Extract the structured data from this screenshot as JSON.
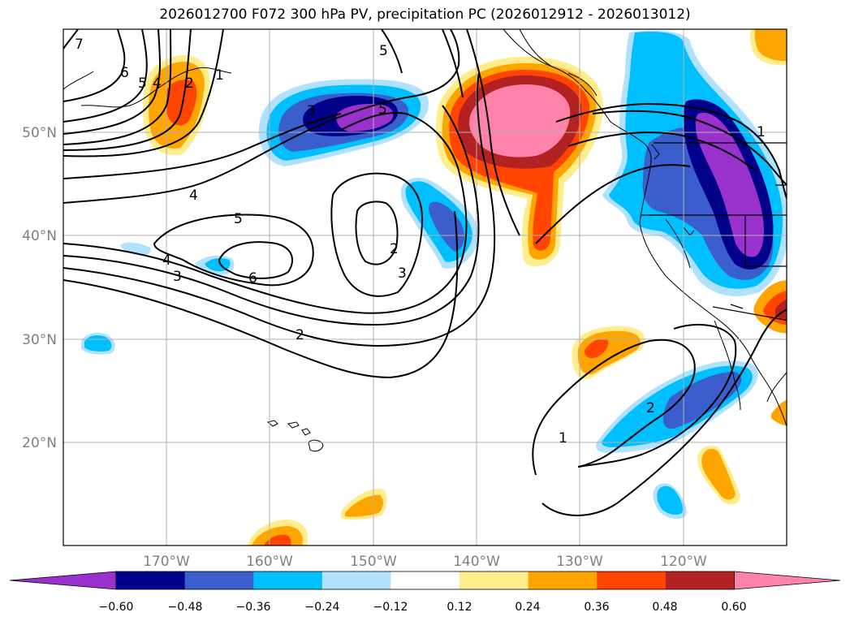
{
  "title": "2026012700 F072 300 hPa PV, precipitation PC (2026012912 - 2026013012)",
  "gridlines": {
    "lon_labels": [
      "170°W",
      "160°W",
      "150°W",
      "140°W",
      "130°W",
      "120°W"
    ],
    "lat_labels": [
      "50°N",
      "40°N",
      "30°N",
      "20°N"
    ]
  },
  "colorbar": {
    "tick_labels": [
      "−0.60",
      "−0.48",
      "−0.36",
      "−0.24",
      "−0.12",
      "0.12",
      "0.24",
      "0.36",
      "0.48",
      "0.60"
    ],
    "colors": [
      "#9932cc",
      "#00008b",
      "#3a5fcd",
      "#00bfff",
      "#b0e2ff",
      "#ffffff",
      "#ffec8b",
      "#ffa500",
      "#ff4500",
      "#b22222",
      "#ff82ab"
    ]
  },
  "pv_contour_labels": [
    "7",
    "6",
    "5",
    "4",
    "2",
    "1",
    "3",
    "5",
    "5",
    "4",
    "5",
    "2",
    "3",
    "4",
    "3",
    "6",
    "2",
    "1",
    "2",
    "1"
  ]
}
